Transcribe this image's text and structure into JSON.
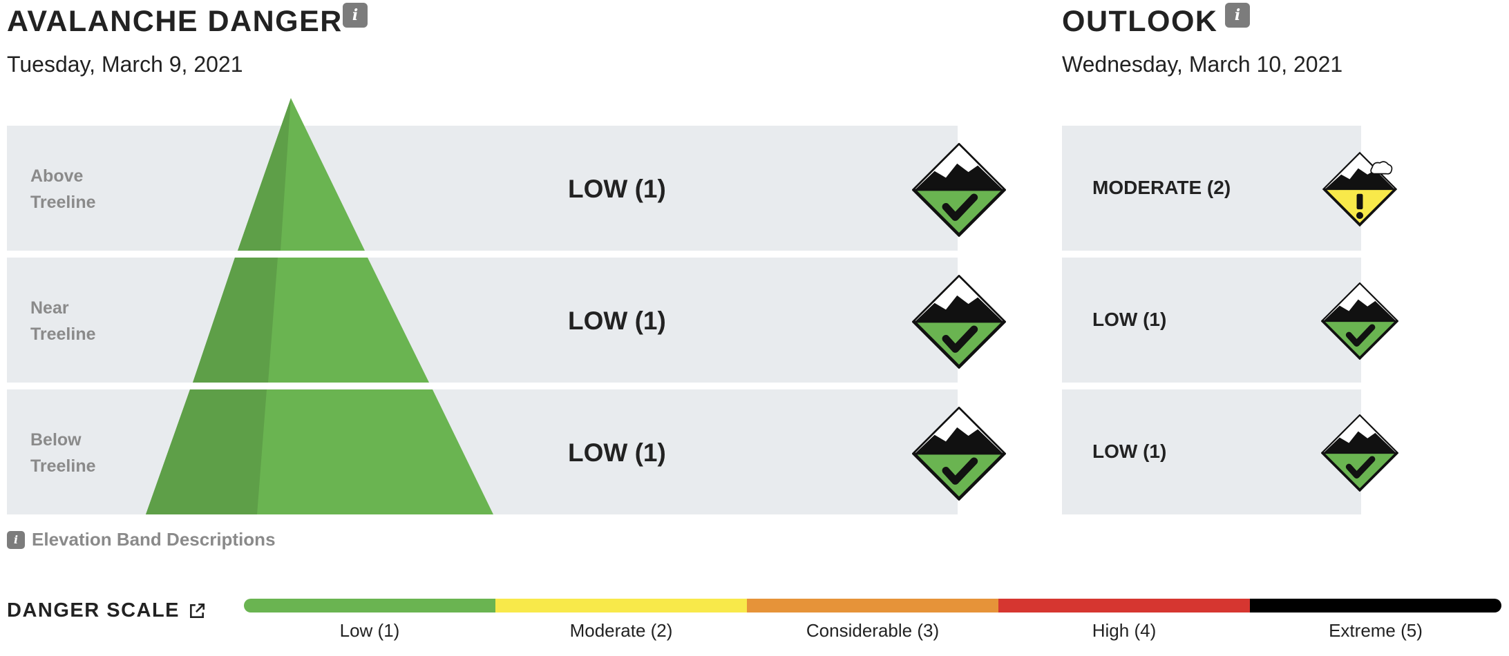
{
  "current": {
    "title": "AVALANCHE DANGER",
    "date": "Tuesday, March 9, 2021",
    "bands": [
      {
        "label_line1": "Above",
        "label_line2": "Treeline",
        "rating": "LOW (1)",
        "icon": "low-danger-icon"
      },
      {
        "label_line1": "Near",
        "label_line2": "Treeline",
        "rating": "LOW (1)",
        "icon": "low-danger-icon"
      },
      {
        "label_line1": "Below",
        "label_line2": "Treeline",
        "rating": "LOW (1)",
        "icon": "low-danger-icon"
      }
    ]
  },
  "outlook": {
    "title": "OUTLOOK",
    "date": "Wednesday, March 10, 2021",
    "bands": [
      {
        "rating": "MODERATE (2)",
        "icon": "moderate-danger-icon"
      },
      {
        "rating": "LOW (1)",
        "icon": "low-danger-icon"
      },
      {
        "rating": "LOW (1)",
        "icon": "low-danger-icon"
      }
    ]
  },
  "info_glyph": "i",
  "elevation_link": "Elevation Band Descriptions",
  "danger_scale": {
    "title": "DANGER SCALE",
    "levels": [
      {
        "label": "Low (1)",
        "color": "#6ab451"
      },
      {
        "label": "Moderate (2)",
        "color": "#f8e94a"
      },
      {
        "label": "Considerable (3)",
        "color": "#e69339"
      },
      {
        "label": "High (4)",
        "color": "#d63630"
      },
      {
        "label": "Extreme (5)",
        "color": "#000000"
      }
    ]
  },
  "colors": {
    "low": "#6ab451",
    "low_shade": "#5e9f48",
    "moderate": "#f8e94a",
    "band_bg": "#e8ebee"
  }
}
